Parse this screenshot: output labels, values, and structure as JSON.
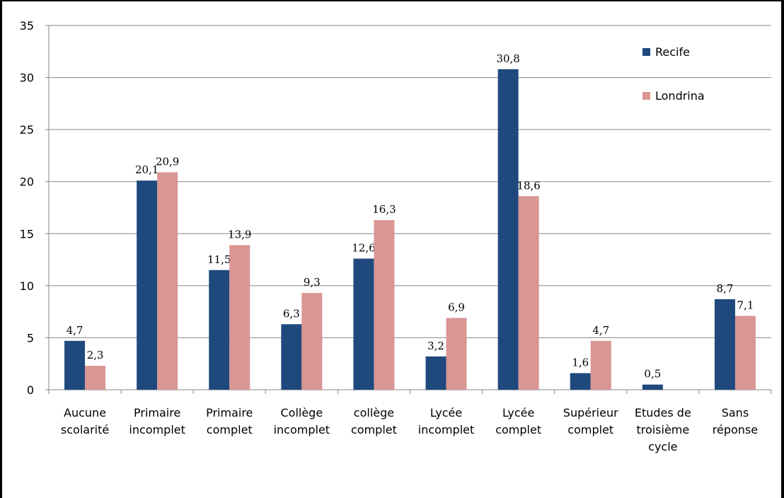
{
  "chart_data": {
    "type": "bar",
    "ylim": [
      0,
      35
    ],
    "yticks": [
      0,
      5,
      10,
      15,
      20,
      25,
      30,
      35
    ],
    "grid": true,
    "legend_position": "top-right",
    "categories": [
      [
        "Aucune",
        "scolarité"
      ],
      [
        "Primaire",
        "incomplet"
      ],
      [
        "Primaire",
        "complet"
      ],
      [
        "Collège",
        "incomplet"
      ],
      [
        "collège",
        "complet"
      ],
      [
        "Lycée",
        "incomplet"
      ],
      [
        "Lycée",
        "complet"
      ],
      [
        "Supérieur",
        "complet"
      ],
      [
        "Etudes de",
        "troisième",
        "cycle"
      ],
      [
        "Sans",
        "réponse"
      ]
    ],
    "series": [
      {
        "name": "Recife",
        "color": "#1f497d",
        "values": [
          4.7,
          20.1,
          11.5,
          6.3,
          12.6,
          3.2,
          30.8,
          1.6,
          0.5,
          8.7
        ],
        "labels": [
          "4,7",
          "20,1",
          "11,5",
          "6,3",
          "12,6",
          "3,2",
          "30,8",
          "1,6",
          "0,5",
          "8,7"
        ]
      },
      {
        "name": "Londrina",
        "color": "#d99694",
        "values": [
          2.3,
          20.9,
          13.9,
          9.3,
          16.3,
          6.9,
          18.6,
          4.7,
          null,
          7.1
        ],
        "labels": [
          "2,3",
          "20,9",
          "13,9",
          "9,3",
          "16,3",
          "6,9",
          "18,6",
          "4,7",
          null,
          "7,1"
        ]
      }
    ]
  }
}
